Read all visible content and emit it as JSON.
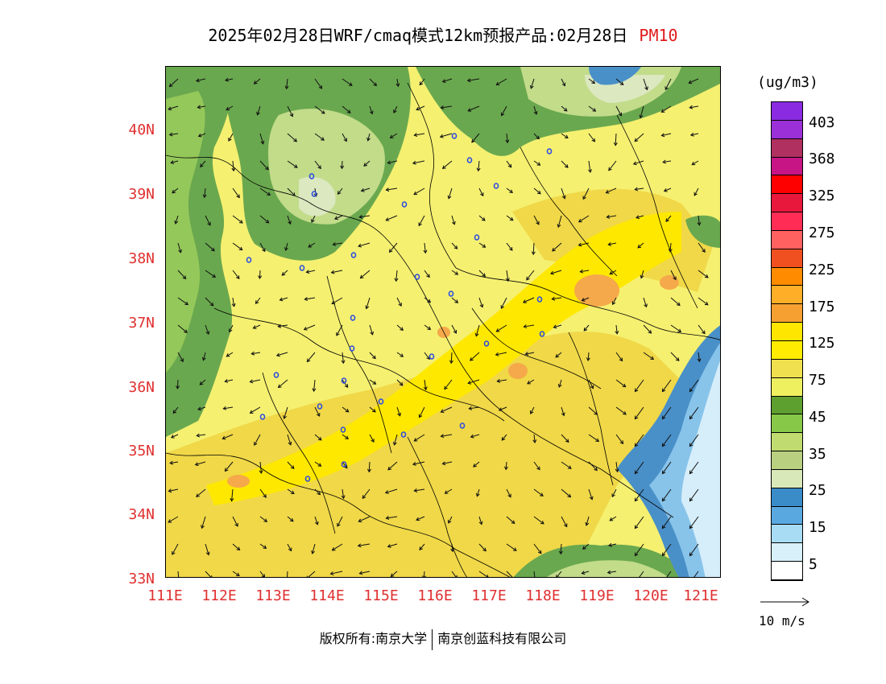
{
  "title": {
    "text": "2025年02月28日WRF/cmaq模式12km预报产品:02月28日",
    "pollutant": "PM10"
  },
  "axes": {
    "lat_labels": [
      "40N",
      "39N",
      "38N",
      "37N",
      "36N",
      "35N",
      "34N",
      "33N"
    ],
    "lon_labels": [
      "111E",
      "112E",
      "113E",
      "114E",
      "115E",
      "116E",
      "117E",
      "118E",
      "119E",
      "120E",
      "121E"
    ]
  },
  "legend": {
    "unit": "(ug/m3)",
    "levels": [
      "403",
      "368",
      "325",
      "275",
      "225",
      "175",
      "125",
      "75",
      "45",
      "35",
      "25",
      "15",
      "5"
    ],
    "colors_top_to_bottom": [
      "#8a2be2",
      "#9b30d9",
      "#b03060",
      "#c71585",
      "#ff0000",
      "#e8173c",
      "#ff2d55",
      "#ff6060",
      "#f05020",
      "#ff8c00",
      "#ffae28",
      "#f5a030",
      "#ffe600",
      "#ffec00",
      "#f0e050",
      "#eef060",
      "#5ea030",
      "#88c848",
      "#c0dc70",
      "#b8d080",
      "#d8e8b8",
      "#3a8cc8",
      "#5aa8e0",
      "#a8dcf5",
      "#d8f0fa",
      "#ffffff"
    ]
  },
  "wind_reference": {
    "label": "10 m/s"
  },
  "footer": {
    "left": "版权所有:南京大学",
    "right": "南京创蓝科技有限公司"
  },
  "map_colors": {
    "background": "#f5f070",
    "yellow_band": "#ffe800",
    "ochre": "#f0d848",
    "orange_spot": "#f5a94a",
    "dark_green": "#6aa84f",
    "mid_green": "#94c85a",
    "light_green": "#c2dc8a",
    "pale_green": "#dce8c0",
    "sea_dark_blue": "#4a90c8",
    "sea_mid_blue": "#88c4ea",
    "sea_light_blue": "#d6eefa",
    "station_marker": "#2c4ce0",
    "boundary": "#000000"
  }
}
